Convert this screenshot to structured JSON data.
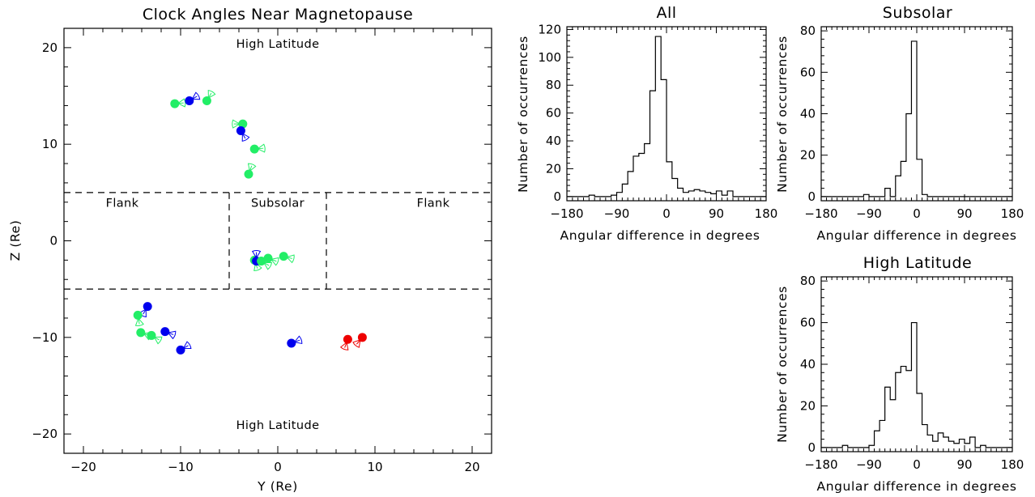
{
  "chart_data": [
    {
      "type": "scatter",
      "title": "Clock Angles Near Magnetopause",
      "xlabel": "Y (Re)",
      "ylabel": "Z (Re)",
      "xlim": [
        -22,
        22
      ],
      "ylim": [
        -22,
        22
      ],
      "xticks": [
        -20,
        -10,
        0,
        10,
        20
      ],
      "yticks": [
        -20,
        -10,
        0,
        10,
        20
      ],
      "regions": {
        "dashed_y": [
          5,
          -5
        ],
        "dashed_x": [
          -5,
          5
        ],
        "labels": [
          {
            "text": "High Latitude",
            "x": 0,
            "y": 20
          },
          {
            "text": "Flank",
            "x": -16,
            "y": 3.5
          },
          {
            "text": "Subsolar",
            "x": 0,
            "y": 3.5
          },
          {
            "text": "Flank",
            "x": 16,
            "y": 3.5
          },
          {
            "text": "High Latitude",
            "x": 0,
            "y": -19.5
          }
        ]
      },
      "legend": "none",
      "colors": {
        "green": "#22ee66",
        "blue": "#0000ee",
        "red": "#ee0000"
      },
      "points": [
        {
          "x": -10.6,
          "y": 14.2,
          "color": "green",
          "dir": 5
        },
        {
          "x": -9.1,
          "y": 14.5,
          "color": "blue",
          "dir": 30
        },
        {
          "x": -7.3,
          "y": 14.5,
          "color": "green",
          "dir": 60
        },
        {
          "x": -3.6,
          "y": 12.1,
          "color": "green",
          "dir": 180
        },
        {
          "x": -3.8,
          "y": 11.4,
          "color": "blue",
          "dir": -60
        },
        {
          "x": -2.4,
          "y": 9.5,
          "color": "green",
          "dir": 5
        },
        {
          "x": -3.0,
          "y": 6.9,
          "color": "green",
          "dir": 70
        },
        {
          "x": -2.4,
          "y": -2.0,
          "color": "green",
          "dir": -70
        },
        {
          "x": -2.2,
          "y": -2.1,
          "color": "blue",
          "dir": 90
        },
        {
          "x": -1.7,
          "y": -2.1,
          "color": "green",
          "dir": -30
        },
        {
          "x": -1.0,
          "y": -1.8,
          "color": "green",
          "dir": -20
        },
        {
          "x": 0.6,
          "y": -1.6,
          "color": "green",
          "dir": -15
        },
        {
          "x": -13.4,
          "y": -6.8,
          "color": "blue",
          "dir": -120
        },
        {
          "x": -14.4,
          "y": -7.7,
          "color": "green",
          "dir": -80
        },
        {
          "x": -14.1,
          "y": -9.5,
          "color": "green",
          "dir": -20
        },
        {
          "x": -13.0,
          "y": -9.8,
          "color": "green",
          "dir": -30
        },
        {
          "x": -11.6,
          "y": -9.4,
          "color": "blue",
          "dir": -20
        },
        {
          "x": -10.0,
          "y": -11.3,
          "color": "blue",
          "dir": 30
        },
        {
          "x": 1.4,
          "y": -10.6,
          "color": "blue",
          "dir": 20
        },
        {
          "x": 7.2,
          "y": -10.2,
          "color": "red",
          "dir": -110
        },
        {
          "x": 8.7,
          "y": -10.0,
          "color": "red",
          "dir": -130
        }
      ]
    },
    {
      "type": "histogram",
      "title": "All",
      "xlabel": "Angular difference in degrees",
      "ylabel": "Number of occurrences",
      "xlim": [
        -180,
        180
      ],
      "ylim": [
        -3,
        122
      ],
      "xticks": [
        -180,
        -90,
        0,
        90,
        180
      ],
      "yticks": [
        0,
        20,
        40,
        60,
        80,
        100,
        120
      ],
      "bin_width": 10,
      "bin_start": -180,
      "counts": [
        0,
        0,
        0,
        0,
        1,
        0,
        0,
        0,
        1,
        3,
        9,
        18,
        29,
        31,
        38,
        76,
        115,
        84,
        25,
        13,
        6,
        3,
        4,
        5,
        4,
        3,
        2,
        4,
        1,
        4,
        0,
        0,
        0,
        0,
        0,
        0
      ]
    },
    {
      "type": "histogram",
      "title": "Subsolar",
      "xlabel": "Angular difference in degrees",
      "ylabel": "Number of occurrences",
      "xlim": [
        -180,
        180
      ],
      "ylim": [
        -2,
        82
      ],
      "xticks": [
        -180,
        -90,
        0,
        90,
        180
      ],
      "yticks": [
        0,
        20,
        40,
        60,
        80
      ],
      "bin_width": 10,
      "bin_start": -180,
      "counts": [
        0,
        0,
        0,
        0,
        0,
        0,
        0,
        0,
        1,
        0,
        0,
        0,
        4,
        0,
        10,
        17,
        40,
        75,
        18,
        1,
        0,
        0,
        0,
        0,
        0,
        0,
        0,
        0,
        0,
        0,
        0,
        0,
        0,
        0,
        0,
        0
      ]
    },
    {
      "type": "histogram",
      "title": "High Latitude",
      "xlabel": "Angular difference in degrees",
      "ylabel": "Number of occurrences",
      "xlim": [
        -180,
        180
      ],
      "ylim": [
        -2,
        82
      ],
      "xticks": [
        -180,
        -90,
        0,
        90,
        180
      ],
      "yticks": [
        0,
        20,
        40,
        60,
        80
      ],
      "bin_width": 10,
      "bin_start": -180,
      "counts": [
        0,
        0,
        0,
        0,
        1,
        0,
        0,
        0,
        0,
        1,
        8,
        13,
        29,
        23,
        36,
        39,
        37,
        60,
        26,
        11,
        6,
        3,
        7,
        5,
        3,
        2,
        4,
        2,
        5,
        0,
        1,
        0,
        0,
        0,
        0,
        0
      ]
    }
  ]
}
